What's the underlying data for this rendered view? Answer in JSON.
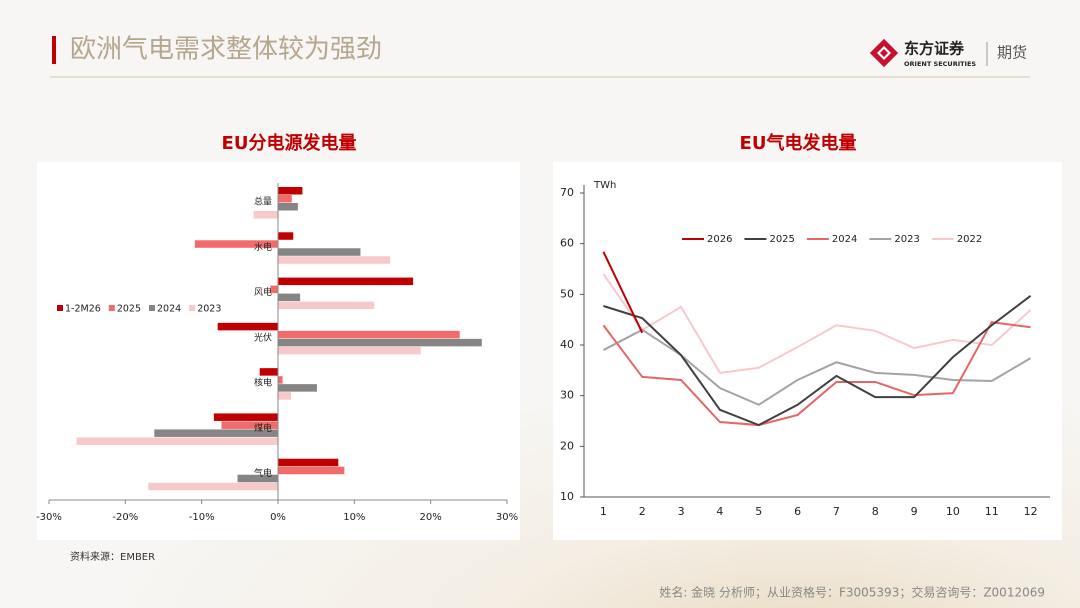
{
  "header": {
    "title": "欧洲气电需求整体较为强劲",
    "logo": "东方证券",
    "logo_en": "ORIENT SECURITIES",
    "brand": "期货"
  },
  "chart_data": [
    {
      "type": "barh",
      "title": "EU分电源发电量",
      "categories": [
        "总量",
        "水电",
        "风电",
        "光伏",
        "核电",
        "煤电",
        "气电"
      ],
      "series": [
        {
          "name": "1-2M26",
          "color": "#c00000",
          "values": [
            3.2,
            2.0,
            17.7,
            -7.9,
            -2.4,
            -8.4,
            7.9
          ]
        },
        {
          "name": "2025",
          "color": "#f26b6b",
          "values": [
            1.8,
            -10.9,
            -1.0,
            23.8,
            0.6,
            -7.4,
            8.7
          ]
        },
        {
          "name": "2024",
          "color": "#858585",
          "values": [
            2.6,
            10.8,
            2.9,
            26.7,
            5.1,
            -16.2,
            -5.3
          ]
        },
        {
          "name": "2023",
          "color": "#f8c9cb",
          "values": [
            -3.2,
            14.7,
            12.6,
            18.7,
            1.7,
            -26.4,
            -17.0
          ]
        }
      ],
      "xlim": [
        -30,
        30
      ],
      "xticks": [
        {
          "value": -30,
          "label": "-30%"
        },
        {
          "value": -20,
          "label": "-20%"
        },
        {
          "value": -10,
          "label": "-10%"
        },
        {
          "value": 0,
          "label": "0%"
        },
        {
          "value": 10,
          "label": "10%"
        },
        {
          "value": 20,
          "label": "20%"
        },
        {
          "value": 30,
          "label": "30%"
        }
      ],
      "legend": "left"
    },
    {
      "type": "line",
      "title": "EU气电发电量",
      "ylabel": "TWh",
      "categories": [
        "1",
        "2",
        "3",
        "4",
        "5",
        "6",
        "7",
        "8",
        "9",
        "10",
        "11",
        "12"
      ],
      "series": [
        {
          "name": "2026",
          "color": "#c00000",
          "values": [
            58.4,
            42.4,
            null,
            null,
            null,
            null,
            null,
            null,
            null,
            null,
            null,
            null
          ]
        },
        {
          "name": "2025",
          "color": "#404040",
          "values": [
            47.7,
            45.3,
            38.0,
            27.2,
            24.2,
            28.2,
            33.9,
            29.7,
            29.7,
            37.6,
            43.9,
            49.7
          ]
        },
        {
          "name": "2024",
          "color": "#e86565",
          "values": [
            43.9,
            33.7,
            33.1,
            24.8,
            24.2,
            26.2,
            32.7,
            32.7,
            30.1,
            30.5,
            44.5,
            43.5
          ]
        },
        {
          "name": "2023",
          "color": "#a3a3a3",
          "values": [
            39.0,
            43.0,
            38.0,
            31.5,
            28.2,
            33.1,
            36.6,
            34.5,
            34.1,
            33.1,
            32.9,
            37.4
          ]
        },
        {
          "name": "2022",
          "color": "#f8c9cc",
          "values": [
            54.0,
            43.0,
            47.5,
            34.5,
            35.5,
            39.6,
            43.9,
            42.8,
            39.4,
            41.0,
            40.0,
            46.9
          ]
        }
      ],
      "ylim": [
        10,
        70
      ],
      "yticks": [
        10,
        20,
        30,
        40,
        50,
        60,
        70
      ],
      "legend": "top"
    }
  ],
  "source": "资料来源：EMBER",
  "footer": "姓名: 金晓 分析师；从业资格号：F3005393；交易咨询号：Z0012069"
}
